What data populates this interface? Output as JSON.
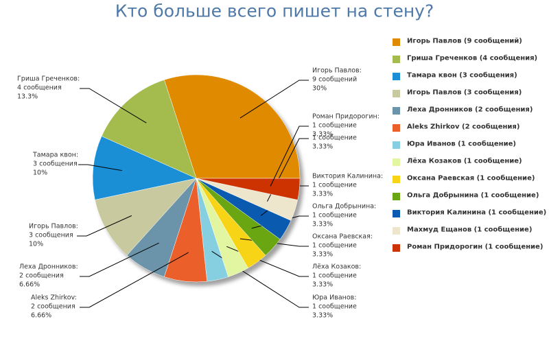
{
  "chart_data": {
    "type": "pie",
    "title": "Кто больше всего пишет на стену?",
    "categories": [
      "Игорь Павлов (9 сообщений)",
      "Гриша Греченков (4 сообщения)",
      "Тамара квон (3 сообщения)",
      "Игорь Павлов (3 сообщения)",
      "Леха Дронников (2 сообщения)",
      "Aleks Zhirkov (2 сообщения)",
      "Юра Иванов (1 сообщение)",
      "Лёха Козаков (1 сообщение)",
      "Оксана Раевская (1 сообщение)",
      "Ольга Добрынина (1 сообщение)",
      "Виктория Калинина (1 сообщение)",
      "Махмуд Ещанов (1 сообщение)",
      "Роман Придорогин (1 сообщение)"
    ],
    "label_names": [
      "Игорь Павлов:",
      "Гриша Греченков:",
      "Тамара квон:",
      "Игорь Павлов:",
      "Леха Дронников:",
      "Aleks Zhirkov:",
      "Юра Иванов:",
      "Лёха Козаков:",
      "Оксана Раевская:",
      "Ольга Добрынина:",
      "Виктория Калинина:",
      null,
      "Роман Придорогин:"
    ],
    "values": [
      9,
      4,
      3,
      3,
      2,
      2,
      1,
      1,
      1,
      1,
      1,
      1,
      1
    ],
    "value_labels": [
      "9 сообщений",
      "4 сообщения",
      "3 сообщения",
      "3 сообщения",
      "2 сообщения",
      "2 сообщения",
      "1 сообщение",
      "1 сообщение",
      "1 сообщение",
      "1 сообщение",
      "1 сообщение",
      "1 сообщение",
      "1 сообщение"
    ],
    "percent_labels": [
      "30%",
      "13.3%",
      "10%",
      "10%",
      "6.66%",
      "6.66%",
      "3.33%",
      "3.33%",
      "3.33%",
      "3.33%",
      "3.33%",
      "3.33%",
      "3.33%"
    ],
    "colors": [
      "#e08a00",
      "#a4bb4e",
      "#1a8fd6",
      "#c9c9a0",
      "#6b93aa",
      "#ea5f2a",
      "#86cfe0",
      "#e2f5a0",
      "#f7d416",
      "#6aa512",
      "#0a5bb0",
      "#ede6cc",
      "#cc3300"
    ],
    "legend": "right"
  }
}
